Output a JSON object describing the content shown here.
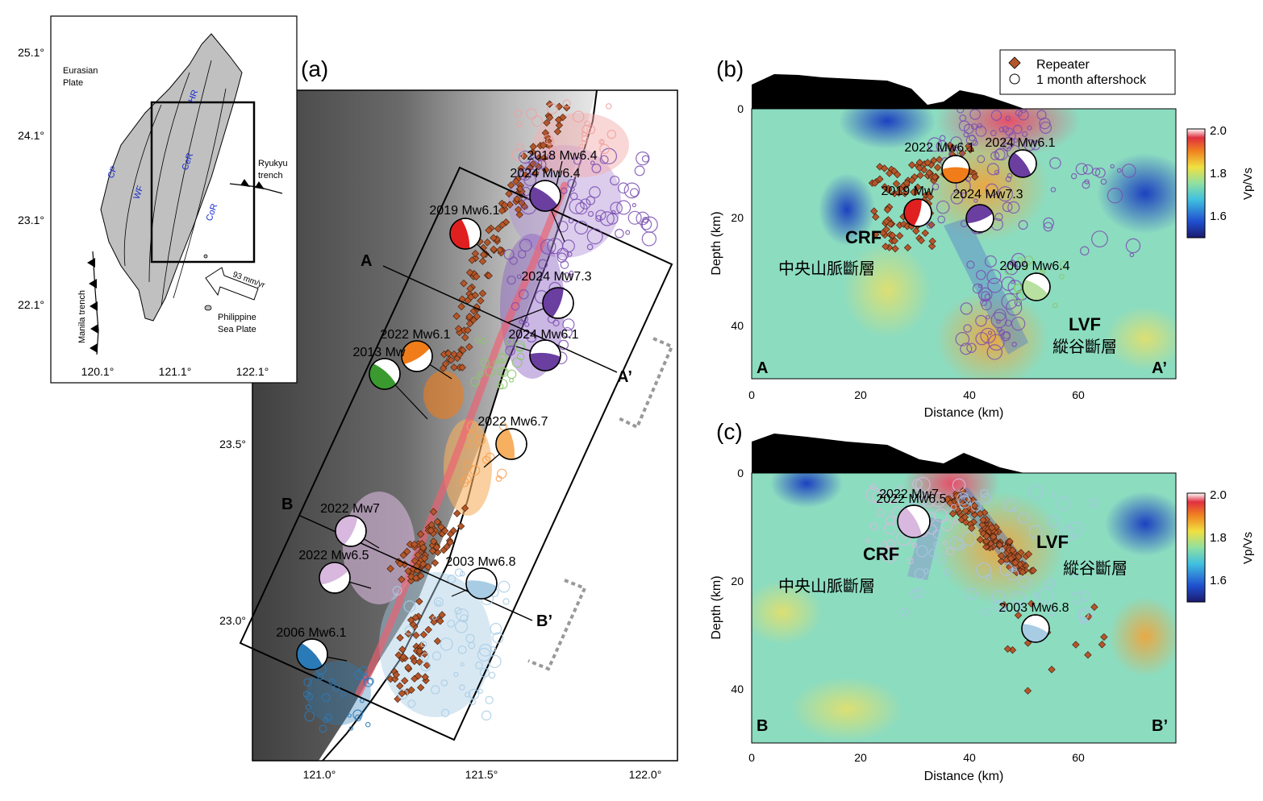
{
  "panel_labels": {
    "a": "(a)",
    "b": "(b)",
    "c": "(c)"
  },
  "inset": {
    "lat_ticks": [
      "25.1°",
      "24.1°",
      "23.1°",
      "22.1°"
    ],
    "lon_ticks": [
      "120.1°",
      "121.1°",
      "122.1°"
    ],
    "eurasian": [
      "Eurasian",
      "Plate"
    ],
    "philippine": [
      "Philippine",
      "Sea Plate"
    ],
    "ryukyu": [
      "Ryukyu",
      "trench"
    ],
    "manila": "Manila trench",
    "velocity": "93 mm/yr",
    "regions": {
      "cp": "CP",
      "wf": "WF",
      "cer": "CeR",
      "hr": "HR",
      "cor": "CoR"
    },
    "colors": {
      "land": "#c0c0c0",
      "region_label": "#1a2bd0"
    }
  },
  "map_a": {
    "lat_ticks": [
      "23.5°",
      "23.0°"
    ],
    "lon_ticks": [
      "121.0°",
      "121.5°",
      "122.0°"
    ],
    "profile_labels": {
      "a": "A",
      "a_prime": "A’",
      "b": "B",
      "b_prime": "B’"
    },
    "events": [
      {
        "label": "2018 Mw6.4",
        "color": "#f2a0a0"
      },
      {
        "label": "2024 Mw6.4",
        "color": "#6a3fa0"
      },
      {
        "label": "2019 Mw6.1",
        "color": "#e02020"
      },
      {
        "label": "2024 Mw7.3",
        "color": "#6a3fa0"
      },
      {
        "label": "2022 Mw6.1",
        "color": "#f07d1a"
      },
      {
        "label": "2024 Mw6.1",
        "color": "#6a3fa0"
      },
      {
        "label": "2013 Mw",
        "color": "#3a9a30"
      },
      {
        "label": "2022 Mw6.7",
        "color": "#f7b060"
      },
      {
        "label": "2022 Mw7",
        "color": "#d8b8de"
      },
      {
        "label": "2022 Mw6.5",
        "color": "#d8b8de"
      },
      {
        "label": "2003 Mw6.8",
        "color": "#a8cce4"
      },
      {
        "label": "2006 Mw6.1",
        "color": "#2a7ab8"
      }
    ]
  },
  "cross_section_b": {
    "legend": {
      "repeater": "Repeater",
      "aftershock": "1 month aftershock"
    },
    "xlabel": "Distance (km)",
    "ylabel": "Depth (km)",
    "x_ticks": [
      "0",
      "20",
      "40",
      "60"
    ],
    "y_ticks": [
      "0",
      "20",
      "40"
    ],
    "colorbar_label": "Vp/Vs",
    "colorbar_ticks": [
      "2.0",
      "1.8",
      "1.6"
    ],
    "crf": "CRF",
    "crf_cn": "中央山脈斷層",
    "lvf": "LVF",
    "lvf_cn": "縱谷斷層",
    "ends": {
      "left": "A",
      "right": "A’"
    },
    "events": [
      "2022 Mw6.1",
      "2024 Mw6.1",
      "2019 Mw",
      "2024 Mw7.3",
      "2009 Mw6.4"
    ]
  },
  "cross_section_c": {
    "xlabel": "Distance (km)",
    "ylabel": "Depth (km)",
    "x_ticks": [
      "0",
      "20",
      "40",
      "60"
    ],
    "y_ticks": [
      "0",
      "20",
      "40"
    ],
    "colorbar_label": "Vp/Vs",
    "colorbar_ticks": [
      "2.0",
      "1.8",
      "1.6"
    ],
    "crf": "CRF",
    "crf_cn": "中央山脈斷層",
    "lvf": "LVF",
    "lvf_cn": "縱谷斷層",
    "ends": {
      "left": "B",
      "right": "B’"
    },
    "events": [
      "2022 Mw7",
      "2022 Mw6.5",
      "2003 Mw6.8"
    ]
  }
}
